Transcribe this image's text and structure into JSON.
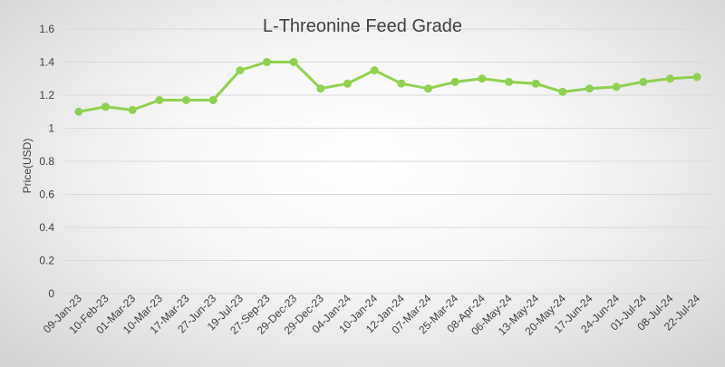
{
  "chart_data": {
    "type": "line",
    "title": "L-Threonine Feed Grade",
    "xlabel": "",
    "ylabel": "Price(USD)",
    "ylim": [
      0,
      1.6
    ],
    "yticks": [
      "0",
      "0.2",
      "0.4",
      "0.6",
      "0.8",
      "1",
      "1.2",
      "1.4",
      "1.6"
    ],
    "grid": true,
    "legend": "none",
    "line_color": "#8fd14f",
    "categories": [
      "09-Jan-23",
      "10-Feb-23",
      "01-Mar-23",
      "10-Mar-23",
      "17-Mar-23",
      "27-Jun-23",
      "19-Jul-23",
      "27-Sep-23",
      "29-Dec-23",
      "29-Dec-23",
      "04-Jan-24",
      "10-Jan-24",
      "12-Jan-24",
      "07-Mar-24",
      "25-Mar-24",
      "08-Apr-24",
      "06-May-24",
      "13-May-24",
      "20-May-24",
      "17-Jun-24",
      "24-Jun-24",
      "01-Jul-24",
      "08-Jul-24",
      "22-Jul-24"
    ],
    "series": [
      {
        "name": "L-Threonine Feed Grade",
        "values": [
          1.1,
          1.13,
          1.11,
          1.17,
          1.17,
          1.17,
          1.35,
          1.4,
          1.4,
          1.24,
          1.27,
          1.35,
          1.27,
          1.24,
          1.28,
          1.3,
          1.28,
          1.27,
          1.22,
          1.24,
          1.25,
          1.28,
          1.3,
          1.31
        ]
      }
    ]
  }
}
